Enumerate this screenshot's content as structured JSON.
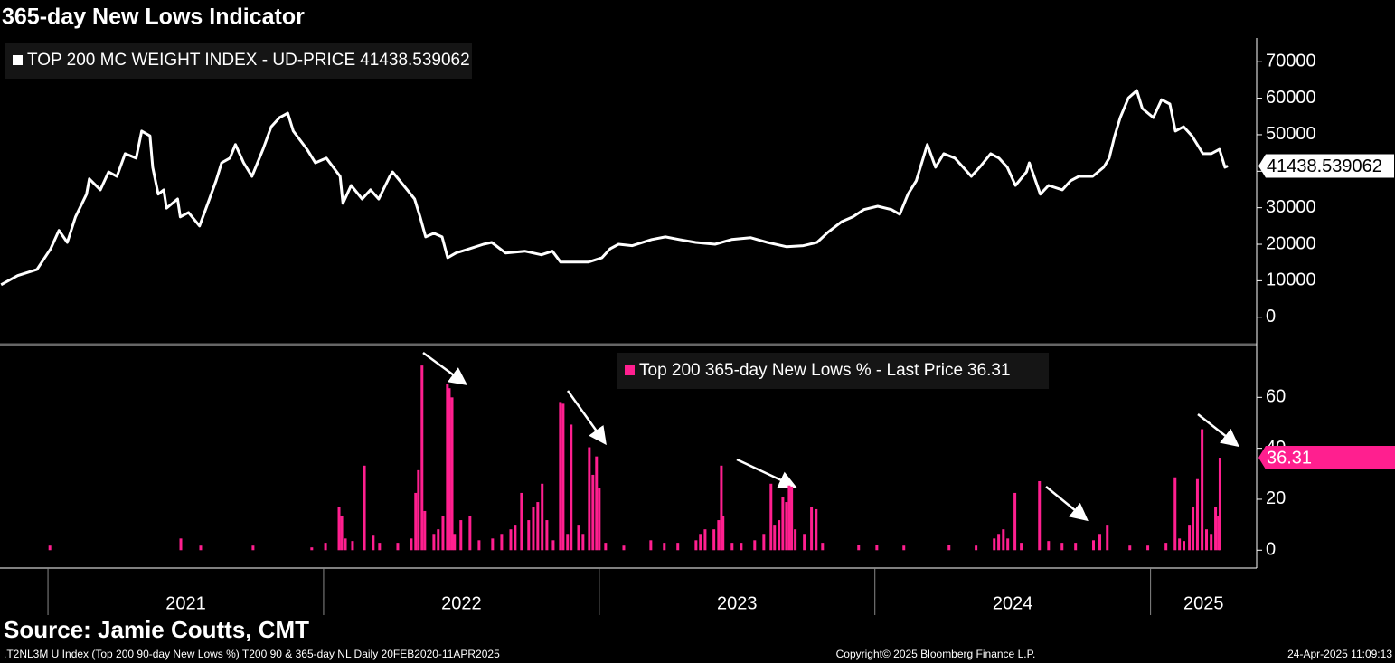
{
  "title": "365-day New Lows Indicator",
  "source": "Source: Jamie Coutts, CMT",
  "footer": {
    "left": ".T2NL3M U Index (Top 200 90-day New Lows %) T200 90 & 365-day NL  Daily 20FEB2020-11APR2025",
    "center": "Copyright© 2025 Bloomberg Finance L.P.",
    "right": "24-Apr-2025 11:09:13"
  },
  "chart_data": [
    {
      "type": "line",
      "xlim": [
        2020.826,
        2025.385
      ],
      "ylim": [
        -7500,
        76500
      ],
      "yticks": [
        0,
        10000,
        20000,
        30000,
        40000,
        50000,
        60000,
        70000
      ],
      "x": [
        2020.83,
        2020.89,
        2020.96,
        2021.01,
        2021.04,
        2021.07,
        2021.1,
        2021.14,
        2021.15,
        2021.19,
        2021.22,
        2021.25,
        2021.28,
        2021.32,
        2021.34,
        2021.37,
        2021.38,
        2021.4,
        2021.42,
        2021.43,
        2021.47,
        2021.48,
        2021.51,
        2021.55,
        2021.58,
        2021.61,
        2021.63,
        2021.66,
        2021.68,
        2021.71,
        2021.74,
        2021.78,
        2021.81,
        2021.84,
        2021.87,
        2021.89,
        2021.94,
        2021.97,
        2022.01,
        2022.06,
        2022.07,
        2022.1,
        2022.14,
        2022.17,
        2022.2,
        2022.24,
        2022.25,
        2022.29,
        2022.33,
        2022.35,
        2022.37,
        2022.4,
        2022.43,
        2022.45,
        2022.48,
        2022.53,
        2022.58,
        2022.61,
        2022.66,
        2022.73,
        2022.79,
        2022.83,
        2022.86,
        2022.91,
        2022.96,
        2023.01,
        2023.04,
        2023.07,
        2023.12,
        2023.19,
        2023.24,
        2023.29,
        2023.35,
        2023.42,
        2023.48,
        2023.55,
        2023.61,
        2023.68,
        2023.74,
        2023.79,
        2023.83,
        2023.88,
        2023.92,
        2023.96,
        2024.01,
        2024.06,
        2024.09,
        2024.12,
        2024.15,
        2024.19,
        2024.22,
        2024.25,
        2024.29,
        2024.32,
        2024.35,
        2024.38,
        2024.42,
        2024.45,
        2024.48,
        2024.51,
        2024.55,
        2024.56,
        2024.6,
        2024.63,
        2024.68,
        2024.71,
        2024.74,
        2024.79,
        2024.83,
        2024.85,
        2024.87,
        2024.89,
        2024.92,
        2024.95,
        2024.97,
        2025.01,
        2025.04,
        2025.07,
        2025.09,
        2025.12,
        2025.15,
        2025.19,
        2025.22,
        2025.25,
        2025.27,
        2025.28
      ],
      "series": [
        {
          "name": "TOP 200 MC WEIGHT INDEX - UD-PRICE",
          "last_price": 41438.539062,
          "color": "#ffffff",
          "values": [
            8900,
            11400,
            13100,
            18800,
            23800,
            20500,
            27500,
            33700,
            37900,
            34900,
            39800,
            38600,
            44800,
            43600,
            51000,
            49700,
            41100,
            33700,
            34900,
            29900,
            32400,
            27500,
            28700,
            25000,
            31200,
            37400,
            42300,
            43600,
            47300,
            42300,
            38600,
            46000,
            52200,
            54700,
            55900,
            51000,
            46000,
            42300,
            43600,
            38600,
            31200,
            36100,
            32400,
            34900,
            32400,
            38600,
            39800,
            36100,
            32400,
            27500,
            22000,
            23000,
            22000,
            16300,
            17600,
            18800,
            20000,
            20500,
            17600,
            18100,
            17100,
            18100,
            15100,
            15100,
            15100,
            16300,
            18800,
            20000,
            19600,
            21300,
            22000,
            21300,
            20500,
            20000,
            21300,
            21800,
            20500,
            19300,
            19600,
            20500,
            23300,
            26200,
            27500,
            29500,
            30400,
            29500,
            28200,
            33700,
            37400,
            47300,
            41100,
            44800,
            43600,
            41100,
            38600,
            41100,
            44800,
            43600,
            41100,
            36100,
            39800,
            42300,
            33700,
            36100,
            34900,
            37400,
            38600,
            38600,
            41100,
            43600,
            49700,
            54700,
            60100,
            62100,
            57200,
            54700,
            59600,
            58400,
            51000,
            52200,
            49700,
            44800,
            44800,
            46000,
            41100,
            41438.539062
          ]
        }
      ]
    },
    {
      "type": "bar",
      "xlim": [
        2020.826,
        2025.385
      ],
      "ylim": [
        -7,
        80
      ],
      "yticks": [
        0,
        20,
        40,
        60
      ],
      "xticks": [
        2021,
        2022,
        2023,
        2024,
        2025
      ],
      "x": [
        2021.007,
        2021.482,
        2021.554,
        2021.744,
        2021.957,
        2022.007,
        2022.056,
        2022.066,
        2022.079,
        2022.105,
        2022.148,
        2022.18,
        2022.203,
        2022.269,
        2022.318,
        2022.334,
        2022.344,
        2022.357,
        2022.367,
        2022.4,
        2022.416,
        2022.433,
        2022.449,
        2022.456,
        2022.466,
        2022.475,
        2022.498,
        2022.531,
        2022.564,
        2022.613,
        2022.646,
        2022.679,
        2022.695,
        2022.718,
        2022.744,
        2022.761,
        2022.777,
        2022.793,
        2022.81,
        2022.833,
        2022.859,
        2022.869,
        2022.885,
        2022.898,
        2022.925,
        2022.941,
        2022.964,
        2022.977,
        2022.99,
        2023.0,
        2023.023,
        2023.089,
        2023.187,
        2023.236,
        2023.285,
        2023.351,
        2023.367,
        2023.384,
        2023.416,
        2023.433,
        2023.443,
        2023.449,
        2023.482,
        2023.515,
        2023.564,
        2023.597,
        2023.623,
        2023.636,
        2023.652,
        2023.666,
        2023.679,
        2023.689,
        2023.698,
        2023.711,
        2023.744,
        2023.77,
        2023.787,
        2023.81,
        2023.941,
        2024.007,
        2024.105,
        2024.269,
        2024.367,
        2024.433,
        2024.449,
        2024.466,
        2024.482,
        2024.508,
        2024.531,
        2024.597,
        2024.63,
        2024.679,
        2024.728,
        2024.793,
        2024.816,
        2024.843,
        2024.925,
        2024.99,
        2025.056,
        2025.089,
        2025.105,
        2025.121,
        2025.141,
        2025.154,
        2025.17,
        2025.187,
        2025.203,
        2025.22,
        2025.236,
        2025.246,
        2025.252
      ],
      "series": [
        {
          "name": "Top 200 365-day New Lows % - Last Price",
          "last_price": 36.31,
          "color": "#ff1f8f",
          "values": [
            1.8,
            4.6,
            1.8,
            1.8,
            1.1,
            2.9,
            17.1,
            13.6,
            4.6,
            3.6,
            33.2,
            5.7,
            2.9,
            2.9,
            4.6,
            22.5,
            31.4,
            72.5,
            15.4,
            6.4,
            8.2,
            13.6,
            65.4,
            63.6,
            60.0,
            6.4,
            11.8,
            13.6,
            3.9,
            4.6,
            6.4,
            8.2,
            10.0,
            22.5,
            11.8,
            17.1,
            18.9,
            26.1,
            11.8,
            3.9,
            58.2,
            57.5,
            6.4,
            49.3,
            10.0,
            6.4,
            40.4,
            29.6,
            36.8,
            24.3,
            2.9,
            1.8,
            3.9,
            2.9,
            2.9,
            3.9,
            6.4,
            8.2,
            8.2,
            11.8,
            33.2,
            13.6,
            2.9,
            2.9,
            3.9,
            6.4,
            26.1,
            10.0,
            11.8,
            20.7,
            18.9,
            25.4,
            25.0,
            8.2,
            6.4,
            17.1,
            16.1,
            2.9,
            2.1,
            2.1,
            1.8,
            2.1,
            1.8,
            4.6,
            6.4,
            8.2,
            4.6,
            22.5,
            2.9,
            27.1,
            3.6,
            2.9,
            2.9,
            3.9,
            6.4,
            10.0,
            1.8,
            1.8,
            2.9,
            28.6,
            4.6,
            3.6,
            10.0,
            17.1,
            27.9,
            47.5,
            8.2,
            6.4,
            17.1,
            13.6,
            36.31
          ]
        }
      ]
    }
  ]
}
